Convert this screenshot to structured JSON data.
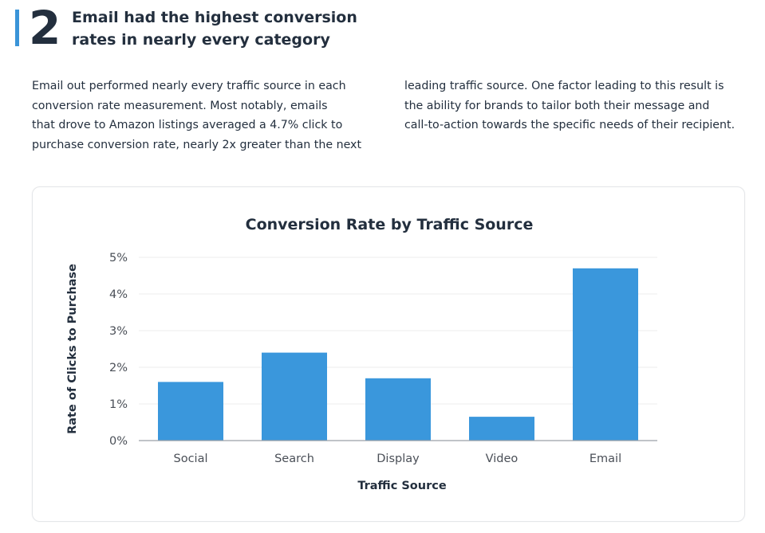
{
  "section": {
    "number": "2",
    "headline": "Email had the highest conversion rates in nearly every category",
    "headline_lines": [
      "Email had the highest conversion",
      "rates in nearly every category"
    ]
  },
  "body": {
    "left_lines": [
      "Email out performed nearly every traffic source in each",
      "conversion rate measurement. Most notably, emails",
      "that drove to Amazon listings averaged a 4.7% click to",
      "purchase conversion rate, nearly 2x greater than the next"
    ],
    "right_lines": [
      "leading traffic source. One factor leading to this result is",
      "the ability for brands to tailor both their message and",
      "call-to-action towards the specific needs of their recipient."
    ]
  },
  "colors": {
    "accent": "#3a94d8",
    "bar": "#3a97dc",
    "text": "#232f3e"
  },
  "chart_data": {
    "type": "bar",
    "title": "Conversion Rate by Traffic Source",
    "xlabel": "Traffic Source",
    "ylabel": "Rate of Clicks to Purchase",
    "categories": [
      "Social",
      "Search",
      "Display",
      "Video",
      "Email"
    ],
    "values": [
      1.6,
      2.4,
      1.7,
      0.65,
      4.7
    ],
    "ylim": [
      0,
      5
    ],
    "yticks": [
      "0%",
      "1%",
      "2%",
      "3%",
      "4%",
      "5%"
    ],
    "grid": true,
    "legend": "none"
  }
}
